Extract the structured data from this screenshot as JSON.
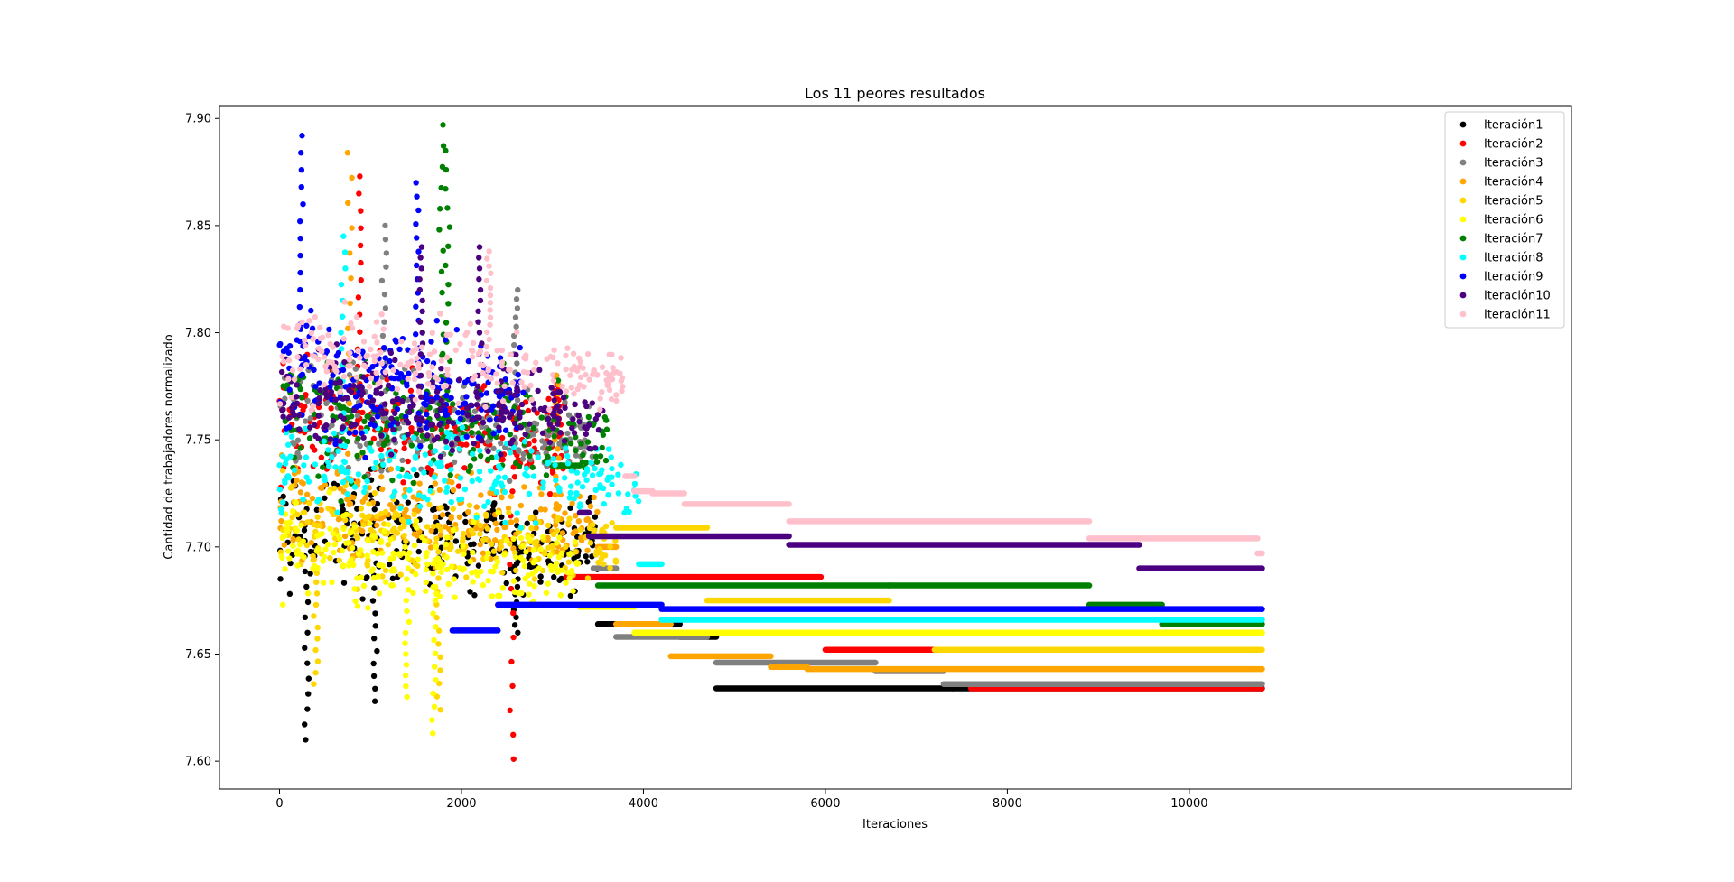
{
  "chart_data": {
    "type": "scatter",
    "title": "Los 11 peores resultados",
    "xlabel": "Iteraciones",
    "ylabel": "Cantidad de trabajadores normalizado",
    "xlim": [
      -660,
      14200
    ],
    "ylim": [
      7.587,
      7.906
    ],
    "xticks": [
      0,
      2000,
      4000,
      6000,
      8000,
      10000
    ],
    "yticks": [
      7.6,
      7.65,
      7.7,
      7.75,
      7.8,
      7.85,
      7.9
    ],
    "xtick_labels": [
      "0",
      "2000",
      "4000",
      "6000",
      "8000",
      "10000"
    ],
    "ytick_labels": [
      "7.60",
      "7.65",
      "7.70",
      "7.75",
      "7.80",
      "7.85",
      "7.90"
    ],
    "legend_position": "top-right",
    "grid": false,
    "series": [
      {
        "name": "Iteración1",
        "color": "#000000",
        "cloud": {
          "x_start": 0,
          "x_end": 3500,
          "y_mid": 7.71,
          "y_spread": 0.06,
          "peaks": [
            [
              300,
              7.61
            ],
            [
              1050,
              7.628
            ],
            [
              2600,
              7.66
            ]
          ]
        },
        "steps": [
          [
            3500,
            7.664,
            4400
          ],
          [
            4400,
            7.658,
            4800
          ],
          [
            4800,
            7.634,
            7400
          ],
          [
            7400,
            7.634,
            10800
          ]
        ]
      },
      {
        "name": "Iteración2",
        "color": "#ff0000",
        "cloud": {
          "x_start": 0,
          "x_end": 3150,
          "y_mid": 7.76,
          "y_spread": 0.06,
          "peaks": [
            [
              2550,
              7.601
            ],
            [
              880,
              7.873
            ],
            [
              3050,
              7.78
            ]
          ]
        },
        "steps": [
          [
            3150,
            7.686,
            4500
          ],
          [
            4500,
            7.686,
            5950
          ],
          [
            6000,
            7.652,
            7600
          ],
          [
            7600,
            7.634,
            10800
          ]
        ]
      },
      {
        "name": "Iteración3",
        "color": "#808080",
        "cloud": {
          "x_start": 0,
          "x_end": 3450,
          "y_mid": 7.76,
          "y_spread": 0.05,
          "peaks": [
            [
              2600,
              7.82
            ],
            [
              1150,
              7.85
            ]
          ]
        },
        "steps": [
          [
            3450,
            7.69,
            3700
          ],
          [
            3700,
            7.658,
            4700
          ],
          [
            4800,
            7.646,
            6550
          ],
          [
            6550,
            7.642,
            7300
          ],
          [
            7300,
            7.636,
            10800
          ]
        ]
      },
      {
        "name": "Iteración4",
        "color": "#ffa500",
        "cloud": {
          "x_start": 0,
          "x_end": 3500,
          "y_mid": 7.72,
          "y_spread": 0.05,
          "peaks": [
            [
              770,
              7.884
            ],
            [
              3050,
              7.78
            ]
          ]
        },
        "steps": [
          [
            3500,
            7.7,
            3700
          ],
          [
            3700,
            7.664,
            4300
          ],
          [
            4300,
            7.649,
            5400
          ],
          [
            5400,
            7.644,
            5800
          ],
          [
            5800,
            7.643,
            10800
          ]
        ]
      },
      {
        "name": "Iteración5",
        "color": "#ffd700",
        "cloud": {
          "x_start": 0,
          "x_end": 3700,
          "y_mid": 7.71,
          "y_spread": 0.045,
          "peaks": [
            [
              400,
              7.636
            ],
            [
              1750,
              7.624
            ]
          ]
        },
        "steps": [
          [
            3700,
            7.709,
            4700
          ],
          [
            4700,
            7.675,
            6700
          ],
          [
            7200,
            7.652,
            10800
          ],
          [
            9700,
            7.66,
            10800
          ]
        ]
      },
      {
        "name": "Iteración6",
        "color": "#ffff00",
        "cloud": {
          "x_start": 0,
          "x_end": 3300,
          "y_mid": 7.7,
          "y_spread": 0.045,
          "peaks": [
            [
              1700,
              7.613
            ],
            [
              1400,
              7.63
            ]
          ]
        },
        "steps": [
          [
            3300,
            7.672,
            3900
          ],
          [
            3900,
            7.66,
            10800
          ]
        ]
      },
      {
        "name": "Iteración7",
        "color": "#008000",
        "cloud": {
          "x_start": 0,
          "x_end": 3600,
          "y_mid": 7.76,
          "y_spread": 0.06,
          "peaks": [
            [
              1780,
              7.897
            ],
            [
              1850,
              7.885
            ]
          ]
        },
        "steps": [
          [
            3000,
            7.738,
            3300
          ],
          [
            3500,
            7.682,
            6700
          ],
          [
            6700,
            7.682,
            8900
          ],
          [
            8900,
            7.673,
            9700
          ],
          [
            9700,
            7.664,
            10800
          ]
        ]
      },
      {
        "name": "Iteración8",
        "color": "#00ffff",
        "cloud": {
          "x_start": 0,
          "x_end": 3950,
          "y_mid": 7.74,
          "y_spread": 0.05,
          "peaks": [
            [
              700,
              7.845
            ]
          ]
        },
        "steps": [
          [
            3950,
            7.692,
            4200
          ],
          [
            4200,
            7.666,
            10800
          ]
        ]
      },
      {
        "name": "Iteración9",
        "color": "#0000ff",
        "cloud": {
          "x_start": 0,
          "x_end": 2700,
          "y_mid": 7.78,
          "y_spread": 0.06,
          "peaks": [
            [
              240,
              7.892
            ],
            [
              1520,
              7.87
            ]
          ]
        },
        "steps": [
          [
            1900,
            7.661,
            2400
          ],
          [
            2400,
            7.673,
            4200
          ],
          [
            4200,
            7.671,
            10800
          ]
        ]
      },
      {
        "name": "Iteración10",
        "color": "#4b0082",
        "cloud": {
          "x_start": 0,
          "x_end": 3600,
          "y_mid": 7.77,
          "y_spread": 0.05,
          "peaks": [
            [
              2200,
              7.84
            ],
            [
              1550,
              7.84
            ]
          ]
        },
        "steps": [
          [
            3300,
            7.716,
            3400
          ],
          [
            3400,
            7.705,
            5600
          ],
          [
            5600,
            7.701,
            9450
          ],
          [
            9450,
            7.69,
            10800
          ]
        ]
      },
      {
        "name": "Iteración11",
        "color": "#ffc0cb",
        "cloud": {
          "x_start": 0,
          "x_end": 3800,
          "y_mid": 7.79,
          "y_spread": 0.045,
          "peaks": [
            [
              2300,
              7.838
            ]
          ]
        },
        "steps": [
          [
            3800,
            7.733,
            3900
          ],
          [
            3900,
            7.726,
            4100
          ],
          [
            4100,
            7.725,
            4450
          ],
          [
            4450,
            7.72,
            5600
          ],
          [
            5600,
            7.712,
            8900
          ],
          [
            8900,
            7.704,
            10750
          ],
          [
            10750,
            7.697,
            10800
          ]
        ]
      }
    ]
  }
}
